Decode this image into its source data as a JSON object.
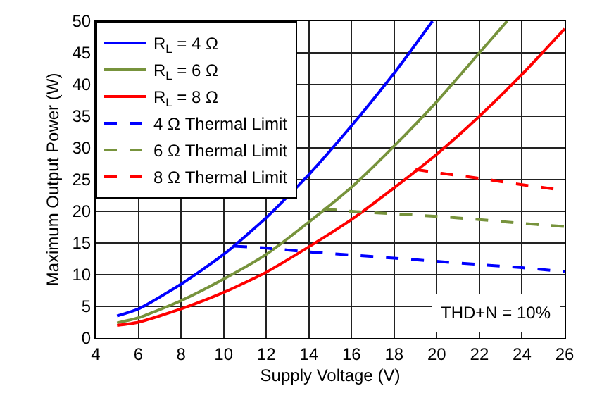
{
  "chart_data": {
    "type": "line",
    "xlabel": "Supply Voltage (V)",
    "ylabel": "Maximum Output Power (W)",
    "xlim": [
      4,
      26
    ],
    "xticks": [
      4,
      6,
      8,
      10,
      12,
      14,
      16,
      18,
      20,
      22,
      24,
      26
    ],
    "ylim": [
      0,
      50
    ],
    "yticks": [
      0,
      5,
      10,
      15,
      20,
      25,
      30,
      35,
      40,
      45,
      50
    ],
    "grid": true,
    "legend": "top left",
    "marker": "none",
    "annotations": [
      "THD+N = 10%"
    ],
    "series": [
      {
        "name": "R$_{L}$ = 4 Ω",
        "color": "#0000ff",
        "line_style": "solid",
        "x": [
          5,
          6,
          8,
          10,
          12,
          14,
          16,
          18,
          19.8
        ],
        "values": [
          3.5,
          4.6,
          8.5,
          13.2,
          19,
          25.8,
          33.5,
          41.8,
          50
        ]
      },
      {
        "name": "R$_{L}$ = 6 Ω",
        "color": "#77933c",
        "line_style": "solid",
        "x": [
          5,
          6,
          8,
          10,
          12,
          14,
          16,
          18,
          20,
          22,
          23.3
        ],
        "values": [
          2.4,
          3.2,
          5.9,
          9.3,
          13.2,
          18.3,
          23.8,
          30.3,
          37.3,
          45,
          50
        ]
      },
      {
        "name": "R$_{L}$ = 8 Ω",
        "color": "#ff0000",
        "line_style": "solid",
        "x": [
          5,
          6,
          8,
          10,
          12,
          14,
          16,
          18,
          20,
          22,
          24,
          26
        ],
        "values": [
          2,
          2.5,
          4.6,
          7.2,
          10.4,
          14.4,
          18.7,
          23.7,
          29,
          35,
          41.6,
          48.8
        ]
      },
      {
        "name": "4 Ω Thermal Limit",
        "color": "#0000ff",
        "line_style": "dashed",
        "x": [
          10.5,
          12,
          14,
          16,
          18,
          20,
          22,
          24,
          26
        ],
        "values": [
          14.5,
          14.2,
          13.6,
          13.1,
          12.6,
          12.1,
          11.6,
          11.1,
          10.5
        ]
      },
      {
        "name": "6 Ω Thermal Limit",
        "color": "#77933c",
        "line_style": "dashed",
        "x": [
          14.7,
          16,
          18,
          20,
          22,
          24,
          26
        ],
        "values": [
          20.4,
          20,
          19.6,
          19.2,
          18.7,
          18.1,
          17.6
        ]
      },
      {
        "name": "8 Ω Thermal Limit",
        "color": "#ff0000",
        "line_style": "dashed",
        "x": [
          19,
          20,
          22,
          24,
          26
        ],
        "values": [
          26.6,
          26.1,
          25.2,
          24.2,
          23.3
        ]
      }
    ]
  }
}
